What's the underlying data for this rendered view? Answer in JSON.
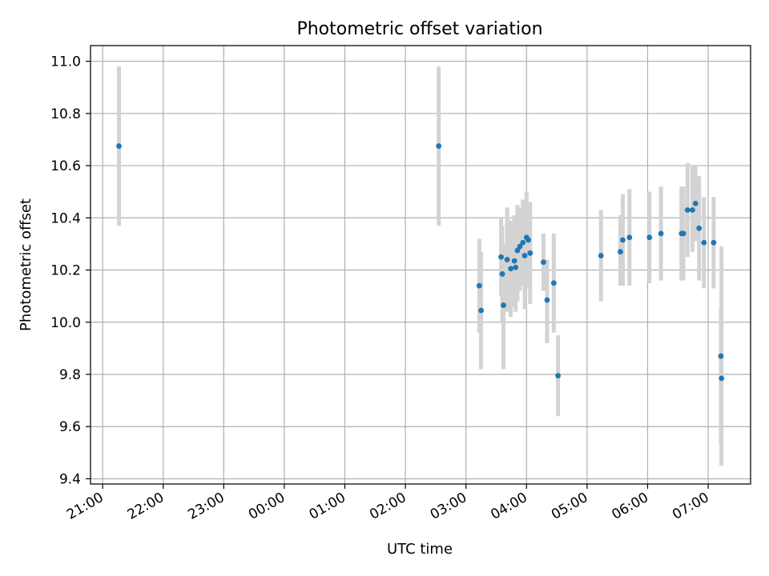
{
  "chart_data": {
    "type": "scatter",
    "title": "Photometric offset variation",
    "xlabel": "UTC time",
    "ylabel": "Photometric offset",
    "x_ticks": [
      "21:00",
      "22:00",
      "23:00",
      "00:00",
      "01:00",
      "02:00",
      "03:00",
      "04:00",
      "05:00",
      "06:00",
      "07:00"
    ],
    "x_unit": "hours after 21:00 UTC",
    "xlim": [
      -0.2,
      10.7
    ],
    "ylim": [
      9.38,
      11.06
    ],
    "y_ticks": [
      9.4,
      9.6,
      9.8,
      10.0,
      10.2,
      10.4,
      10.6,
      10.8,
      11.0
    ],
    "grid": true,
    "marker_color": "#1f77b4",
    "errorbar_color": "#d3d3d3",
    "points": [
      {
        "t": 0.27,
        "y": 10.675,
        "lo": 10.37,
        "hi": 10.98
      },
      {
        "t": 5.55,
        "y": 10.675,
        "lo": 10.37,
        "hi": 10.98
      },
      {
        "t": 6.22,
        "y": 10.14,
        "lo": 9.96,
        "hi": 10.32
      },
      {
        "t": 6.25,
        "y": 10.045,
        "lo": 9.82,
        "hi": 10.27
      },
      {
        "t": 6.58,
        "y": 10.25,
        "lo": 10.1,
        "hi": 10.4
      },
      {
        "t": 6.6,
        "y": 10.185,
        "lo": 10.0,
        "hi": 10.37
      },
      {
        "t": 6.62,
        "y": 10.065,
        "lo": 9.82,
        "hi": 10.3
      },
      {
        "t": 6.68,
        "y": 10.24,
        "lo": 10.04,
        "hi": 10.44
      },
      {
        "t": 6.74,
        "y": 10.205,
        "lo": 10.02,
        "hi": 10.39
      },
      {
        "t": 6.8,
        "y": 10.235,
        "lo": 10.06,
        "hi": 10.41
      },
      {
        "t": 6.82,
        "y": 10.21,
        "lo": 10.04,
        "hi": 10.39
      },
      {
        "t": 6.85,
        "y": 10.275,
        "lo": 10.08,
        "hi": 10.45
      },
      {
        "t": 6.89,
        "y": 10.29,
        "lo": 10.12,
        "hi": 10.44
      },
      {
        "t": 6.94,
        "y": 10.305,
        "lo": 10.14,
        "hi": 10.47
      },
      {
        "t": 6.97,
        "y": 10.255,
        "lo": 10.05,
        "hi": 10.46
      },
      {
        "t": 7.0,
        "y": 10.325,
        "lo": 10.15,
        "hi": 10.5
      },
      {
        "t": 7.03,
        "y": 10.315,
        "lo": 10.13,
        "hi": 10.46
      },
      {
        "t": 7.06,
        "y": 10.265,
        "lo": 10.07,
        "hi": 10.46
      },
      {
        "t": 7.28,
        "y": 10.23,
        "lo": 10.12,
        "hi": 10.34
      },
      {
        "t": 7.34,
        "y": 10.085,
        "lo": 9.92,
        "hi": 10.24
      },
      {
        "t": 7.45,
        "y": 10.15,
        "lo": 9.96,
        "hi": 10.34
      },
      {
        "t": 7.52,
        "y": 9.795,
        "lo": 9.64,
        "hi": 9.95
      },
      {
        "t": 8.23,
        "y": 10.255,
        "lo": 10.08,
        "hi": 10.43
      },
      {
        "t": 8.55,
        "y": 10.27,
        "lo": 10.14,
        "hi": 10.41
      },
      {
        "t": 8.59,
        "y": 10.315,
        "lo": 10.14,
        "hi": 10.49
      },
      {
        "t": 8.7,
        "y": 10.325,
        "lo": 10.14,
        "hi": 10.51
      },
      {
        "t": 9.03,
        "y": 10.325,
        "lo": 10.15,
        "hi": 10.5
      },
      {
        "t": 9.22,
        "y": 10.34,
        "lo": 10.16,
        "hi": 10.52
      },
      {
        "t": 9.56,
        "y": 10.34,
        "lo": 10.16,
        "hi": 10.52
      },
      {
        "t": 9.59,
        "y": 10.34,
        "lo": 10.16,
        "hi": 10.52
      },
      {
        "t": 9.66,
        "y": 10.43,
        "lo": 10.25,
        "hi": 10.61
      },
      {
        "t": 9.74,
        "y": 10.43,
        "lo": 10.27,
        "hi": 10.6
      },
      {
        "t": 9.79,
        "y": 10.455,
        "lo": 10.31,
        "hi": 10.6
      },
      {
        "t": 9.85,
        "y": 10.36,
        "lo": 10.16,
        "hi": 10.56
      },
      {
        "t": 9.93,
        "y": 10.305,
        "lo": 10.13,
        "hi": 10.48
      },
      {
        "t": 10.09,
        "y": 10.305,
        "lo": 10.13,
        "hi": 10.48
      },
      {
        "t": 10.21,
        "y": 9.87,
        "lo": 9.53,
        "hi": 10.05
      },
      {
        "t": 10.22,
        "y": 9.785,
        "lo": 9.45,
        "hi": 10.29
      }
    ]
  }
}
